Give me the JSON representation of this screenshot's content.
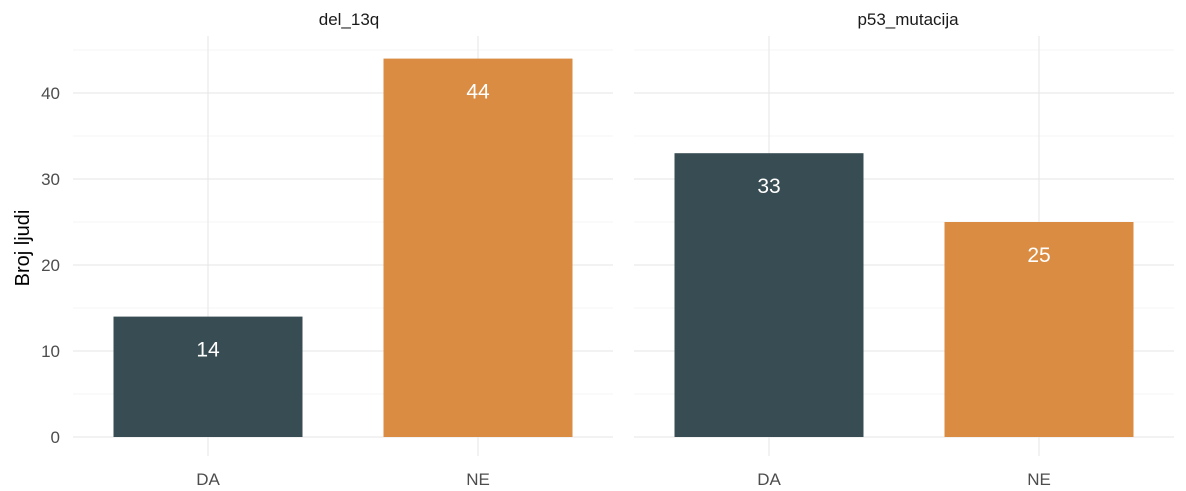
{
  "chart_data": {
    "type": "bar",
    "ylabel": "Broj ljudi",
    "ylim": [
      0,
      46
    ],
    "yticks": [
      0,
      10,
      20,
      30,
      40
    ],
    "grid": true,
    "categories": [
      "DA",
      "NE"
    ],
    "colors": {
      "DA": "#384d53",
      "NE": "#db8c43"
    },
    "panels": [
      {
        "title": "del_13q",
        "values": [
          14,
          44
        ],
        "labels": [
          "14",
          "44"
        ]
      },
      {
        "title": "p53_mutacija",
        "values": [
          33,
          25
        ],
        "labels": [
          "33",
          "25"
        ]
      }
    ]
  }
}
